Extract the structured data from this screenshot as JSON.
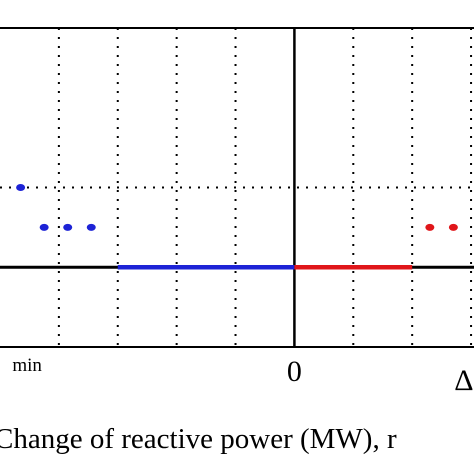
{
  "chart_data": {
    "type": "line",
    "xlabel": "Change of reactive power (MW), r",
    "x_tick_labels": [
      {
        "label": "min",
        "x": -4
      },
      {
        "label": "0",
        "x": 0
      },
      {
        "label": "Δ",
        "x": 2.85
      }
    ],
    "xlim": [
      -5,
      3.05
    ],
    "ylim": [
      0,
      4
    ],
    "grid": true,
    "gridline_x": [
      -4,
      -3,
      -2,
      -1,
      0,
      1,
      2,
      3
    ],
    "gridline_y": [
      2
    ],
    "axis_line_y": 1,
    "segments": [
      {
        "color": "#1d23d6",
        "x": [
          -3,
          0
        ],
        "y": [
          1,
          1
        ]
      },
      {
        "color": "#e0161a",
        "x": [
          0,
          2
        ],
        "y": [
          1,
          1
        ]
      }
    ],
    "markers": [
      {
        "color": "#1d23d6",
        "points": [
          [
            -4.65,
            2
          ],
          [
            -4.25,
            1.5
          ],
          [
            -3.85,
            1.5
          ],
          [
            -3.45,
            1.5
          ]
        ]
      },
      {
        "color": "#e0161a",
        "points": [
          [
            2.3,
            1.5
          ],
          [
            2.7,
            1.5
          ]
        ]
      }
    ],
    "colors": {
      "blue": "#1d23d6",
      "red": "#e0161a",
      "axis": "#000000"
    }
  }
}
